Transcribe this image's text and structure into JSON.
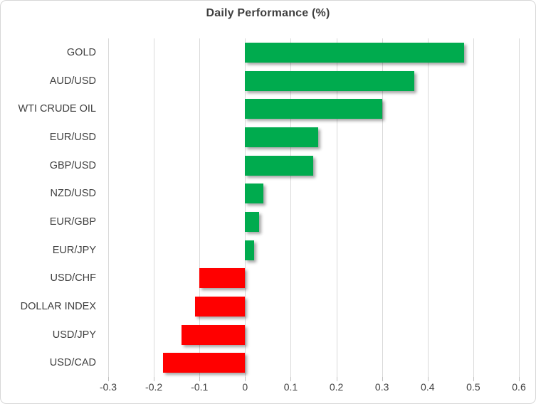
{
  "chart_data": {
    "type": "bar",
    "orientation": "horizontal",
    "title": "Daily Performance (%)",
    "categories": [
      "GOLD",
      "AUD/USD",
      "WTI CRUDE OIL",
      "EUR/USD",
      "GBP/USD",
      "NZD/USD",
      "EUR/GBP",
      "EUR/JPY",
      "USD/CHF",
      "DOLLAR INDEX",
      "USD/JPY",
      "USD/CAD"
    ],
    "values": [
      0.48,
      0.37,
      0.3,
      0.16,
      0.15,
      0.04,
      0.03,
      0.02,
      -0.1,
      -0.11,
      -0.14,
      -0.18
    ],
    "xlim": [
      -0.3,
      0.6
    ],
    "xtick_values": [
      -0.3,
      -0.2,
      -0.1,
      0,
      0.1,
      0.2,
      0.3,
      0.4,
      0.5,
      0.6
    ],
    "xtick_labels": [
      "-0.3",
      "-0.2",
      "-0.1",
      "0",
      "0.1",
      "0.2",
      "0.3",
      "0.4",
      "0.5",
      "0.6"
    ],
    "xlabel": "",
    "ylabel": "",
    "grid": true,
    "legend": false,
    "positive_color": "#00AB4E",
    "negative_color": "#FF0000",
    "gridline_color": "#d9d9d9",
    "text_color": "#404040"
  }
}
